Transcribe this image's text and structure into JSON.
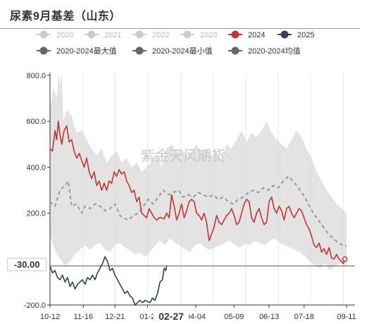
{
  "title": "尿素9月基差（山东）",
  "watermark": "紫金天风期货",
  "crosshair": {
    "y_label": "-30.00",
    "x_label": "02-27"
  },
  "chart_data": {
    "type": "line",
    "title": "尿素9月基差（山东）",
    "ylim": [
      -200,
      800
    ],
    "yticks": [
      "800.0",
      "600.0",
      "400.0",
      "200.0",
      "-200.0"
    ],
    "xticks": [
      "10-12",
      "11-16",
      "12-21",
      "01-2",
      "04-04",
      "05-09",
      "06-13",
      "07-18",
      "09-11"
    ],
    "legend": {
      "position": "top",
      "items": [
        {
          "name": "2020",
          "color": "#cccccc",
          "active": false
        },
        {
          "name": "2021",
          "color": "#cccccc",
          "active": false
        },
        {
          "name": "2022",
          "color": "#cccccc",
          "active": false
        },
        {
          "name": "2023",
          "color": "#cccccc",
          "active": false
        },
        {
          "name": "2024",
          "color": "#c23531",
          "active": true
        },
        {
          "name": "2025",
          "color": "#2f4554",
          "active": true
        },
        {
          "name": "2020-2024最大值",
          "color": "#666666",
          "active": true
        },
        {
          "name": "2020-2024最小值",
          "color": "#666666",
          "active": true
        },
        {
          "name": "2020-2024均值",
          "color": "#666666",
          "active": true
        }
      ]
    },
    "series_2024": {
      "name": "2024",
      "color": "#c23531",
      "points": [
        [
          0,
          480
        ],
        [
          3,
          470
        ],
        [
          6,
          560
        ],
        [
          8,
          520
        ],
        [
          10,
          600
        ],
        [
          12,
          540
        ],
        [
          14,
          500
        ],
        [
          17,
          560
        ],
        [
          20,
          580
        ],
        [
          23,
          510
        ],
        [
          26,
          520
        ],
        [
          29,
          470
        ],
        [
          32,
          440
        ],
        [
          35,
          460
        ],
        [
          38,
          430
        ],
        [
          41,
          400
        ],
        [
          44,
          440
        ],
        [
          47,
          380
        ],
        [
          50,
          350
        ],
        [
          53,
          380
        ],
        [
          56,
          320
        ],
        [
          59,
          340
        ],
        [
          62,
          300
        ],
        [
          65,
          330
        ],
        [
          68,
          300
        ],
        [
          71,
          340
        ],
        [
          74,
          330
        ],
        [
          77,
          380
        ],
        [
          80,
          360
        ],
        [
          83,
          390
        ],
        [
          86,
          370
        ],
        [
          89,
          380
        ],
        [
          92,
          340
        ],
        [
          95,
          320
        ],
        [
          98,
          290
        ],
        [
          101,
          300
        ],
        [
          104,
          250
        ],
        [
          107,
          270
        ],
        [
          110,
          200
        ],
        [
          113,
          190
        ],
        [
          116,
          180
        ],
        [
          119,
          220
        ],
        [
          122,
          200
        ],
        [
          125,
          180
        ],
        [
          128,
          170
        ],
        [
          131,
          180
        ],
        [
          134,
          180
        ],
        [
          137,
          175
        ],
        [
          140,
          200
        ],
        [
          143,
          180
        ],
        [
          146,
          280
        ],
        [
          149,
          230
        ],
        [
          152,
          170
        ],
        [
          155,
          200
        ],
        [
          158,
          240
        ],
        [
          161,
          180
        ],
        [
          164,
          210
        ],
        [
          167,
          250
        ],
        [
          170,
          260
        ],
        [
          173,
          250
        ],
        [
          176,
          200
        ],
        [
          179,
          190
        ],
        [
          182,
          170
        ],
        [
          185,
          200
        ],
        [
          188,
          160
        ],
        [
          191,
          80
        ],
        [
          194,
          110
        ],
        [
          197,
          140
        ],
        [
          200,
          190
        ],
        [
          203,
          160
        ],
        [
          206,
          150
        ],
        [
          209,
          170
        ],
        [
          212,
          190
        ],
        [
          215,
          200
        ],
        [
          218,
          220
        ],
        [
          221,
          190
        ],
        [
          224,
          150
        ],
        [
          227,
          160
        ],
        [
          230,
          200
        ],
        [
          233,
          240
        ],
        [
          236,
          260
        ],
        [
          239,
          250
        ],
        [
          242,
          180
        ],
        [
          245,
          160
        ],
        [
          248,
          200
        ],
        [
          251,
          220
        ],
        [
          254,
          180
        ],
        [
          257,
          150
        ],
        [
          260,
          160
        ],
        [
          263,
          250
        ],
        [
          266,
          270
        ],
        [
          269,
          220
        ],
        [
          272,
          200
        ],
        [
          275,
          230
        ],
        [
          278,
          210
        ],
        [
          281,
          170
        ],
        [
          284,
          220
        ],
        [
          287,
          230
        ],
        [
          290,
          200
        ],
        [
          293,
          180
        ],
        [
          296,
          200
        ],
        [
          299,
          220
        ],
        [
          302,
          210
        ],
        [
          305,
          180
        ],
        [
          308,
          150
        ],
        [
          311,
          130
        ],
        [
          314,
          100
        ],
        [
          317,
          60
        ],
        [
          320,
          50
        ],
        [
          323,
          70
        ],
        [
          326,
          30
        ],
        [
          329,
          45
        ],
        [
          332,
          20
        ],
        [
          335,
          50
        ],
        [
          338,
          5
        ],
        [
          341,
          0
        ],
        [
          344,
          20
        ],
        [
          347,
          0
        ],
        [
          350,
          -10
        ],
        [
          352,
          -20
        ],
        [
          354,
          0
        ]
      ]
    },
    "series_2025": {
      "name": "2025",
      "color": "#2f4554",
      "points": [
        [
          0,
          -30
        ],
        [
          3,
          -60
        ],
        [
          6,
          -50
        ],
        [
          9,
          -80
        ],
        [
          12,
          -90
        ],
        [
          15,
          -70
        ],
        [
          18,
          -100
        ],
        [
          21,
          -80
        ],
        [
          24,
          -120
        ],
        [
          27,
          -100
        ],
        [
          30,
          -130
        ],
        [
          33,
          -110
        ],
        [
          36,
          -100
        ],
        [
          39,
          -90
        ],
        [
          42,
          -110
        ],
        [
          45,
          -80
        ],
        [
          48,
          -90
        ],
        [
          51,
          -70
        ],
        [
          54,
          -90
        ],
        [
          57,
          -60
        ],
        [
          60,
          -40
        ],
        [
          63,
          -20
        ],
        [
          66,
          10
        ],
        [
          69,
          -10
        ],
        [
          72,
          -50
        ],
        [
          75,
          -40
        ],
        [
          78,
          -70
        ],
        [
          81,
          -90
        ],
        [
          84,
          -110
        ],
        [
          87,
          -130
        ],
        [
          90,
          -150
        ],
        [
          93,
          -140
        ],
        [
          96,
          -160
        ],
        [
          99,
          -170
        ],
        [
          102,
          -200
        ],
        [
          105,
          -190
        ],
        [
          108,
          -180
        ],
        [
          111,
          -190
        ],
        [
          114,
          -180
        ],
        [
          117,
          -185
        ],
        [
          120,
          -190
        ],
        [
          123,
          -170
        ],
        [
          126,
          -180
        ],
        [
          129,
          -150
        ],
        [
          132,
          -100
        ],
        [
          135,
          -90
        ],
        [
          137,
          -40
        ],
        [
          139,
          -50
        ],
        [
          140,
          -30
        ]
      ]
    },
    "series_avg": {
      "name": "2020-2024均值",
      "color": "#999999",
      "points": [
        [
          0,
          250
        ],
        [
          6,
          230
        ],
        [
          12,
          300
        ],
        [
          18,
          320
        ],
        [
          22,
          340
        ],
        [
          26,
          230
        ],
        [
          32,
          240
        ],
        [
          38,
          200
        ],
        [
          42,
          230
        ],
        [
          48,
          220
        ],
        [
          54,
          240
        ],
        [
          60,
          230
        ],
        [
          66,
          210
        ],
        [
          72,
          220
        ],
        [
          78,
          240
        ],
        [
          84,
          190
        ],
        [
          88,
          180
        ],
        [
          94,
          170
        ],
        [
          100,
          190
        ],
        [
          106,
          200
        ],
        [
          112,
          230
        ],
        [
          118,
          260
        ],
        [
          124,
          240
        ],
        [
          130,
          270
        ],
        [
          136,
          300
        ],
        [
          142,
          280
        ],
        [
          148,
          290
        ],
        [
          154,
          300
        ],
        [
          160,
          270
        ],
        [
          166,
          280
        ],
        [
          172,
          270
        ],
        [
          178,
          290
        ],
        [
          184,
          280
        ],
        [
          190,
          270
        ],
        [
          196,
          280
        ],
        [
          202,
          260
        ],
        [
          208,
          270
        ],
        [
          214,
          250
        ],
        [
          220,
          240
        ],
        [
          226,
          260
        ],
        [
          232,
          270
        ],
        [
          238,
          290
        ],
        [
          244,
          300
        ],
        [
          250,
          290
        ],
        [
          256,
          310
        ],
        [
          262,
          300
        ],
        [
          268,
          320
        ],
        [
          274,
          310
        ],
        [
          280,
          340
        ],
        [
          286,
          360
        ],
        [
          292,
          340
        ],
        [
          298,
          310
        ],
        [
          304,
          280
        ],
        [
          310,
          240
        ],
        [
          316,
          200
        ],
        [
          322,
          170
        ],
        [
          328,
          140
        ],
        [
          334,
          110
        ],
        [
          340,
          90
        ],
        [
          346,
          70
        ],
        [
          352,
          60
        ],
        [
          356,
          55
        ]
      ]
    },
    "band": {
      "name": "2020-2024 range",
      "max": [
        [
          0,
          650
        ],
        [
          4,
          750
        ],
        [
          8,
          700
        ],
        [
          10,
          800
        ],
        [
          12,
          760
        ],
        [
          14,
          810
        ],
        [
          16,
          600
        ],
        [
          20,
          650
        ],
        [
          26,
          620
        ],
        [
          32,
          550
        ],
        [
          38,
          560
        ],
        [
          44,
          520
        ],
        [
          50,
          480
        ],
        [
          56,
          450
        ],
        [
          62,
          480
        ],
        [
          68,
          420
        ],
        [
          74,
          450
        ],
        [
          80,
          470
        ],
        [
          86,
          420
        ],
        [
          92,
          440
        ],
        [
          98,
          400
        ],
        [
          104,
          420
        ],
        [
          110,
          380
        ],
        [
          116,
          400
        ],
        [
          122,
          430
        ],
        [
          128,
          460
        ],
        [
          134,
          400
        ],
        [
          140,
          480
        ],
        [
          146,
          500
        ],
        [
          152,
          460
        ],
        [
          158,
          480
        ],
        [
          164,
          450
        ],
        [
          170,
          470
        ],
        [
          176,
          500
        ],
        [
          182,
          460
        ],
        [
          188,
          480
        ],
        [
          194,
          450
        ],
        [
          200,
          470
        ],
        [
          206,
          430
        ],
        [
          212,
          500
        ],
        [
          218,
          480
        ],
        [
          224,
          520
        ],
        [
          230,
          560
        ],
        [
          236,
          510
        ],
        [
          242,
          550
        ],
        [
          248,
          530
        ],
        [
          254,
          560
        ],
        [
          260,
          600
        ],
        [
          266,
          550
        ],
        [
          272,
          520
        ],
        [
          278,
          500
        ],
        [
          284,
          480
        ],
        [
          290,
          520
        ],
        [
          296,
          560
        ],
        [
          302,
          530
        ],
        [
          308,
          480
        ],
        [
          314,
          440
        ],
        [
          320,
          380
        ],
        [
          326,
          340
        ],
        [
          332,
          300
        ],
        [
          338,
          270
        ],
        [
          344,
          240
        ],
        [
          350,
          220
        ],
        [
          356,
          200
        ]
      ],
      "min": [
        [
          0,
          100
        ],
        [
          6,
          40
        ],
        [
          12,
          0
        ],
        [
          18,
          -30
        ],
        [
          24,
          -10
        ],
        [
          30,
          20
        ],
        [
          36,
          40
        ],
        [
          42,
          60
        ],
        [
          48,
          40
        ],
        [
          54,
          60
        ],
        [
          60,
          70
        ],
        [
          66,
          40
        ],
        [
          72,
          30
        ],
        [
          78,
          60
        ],
        [
          84,
          70
        ],
        [
          90,
          50
        ],
        [
          96,
          40
        ],
        [
          102,
          20
        ],
        [
          108,
          30
        ],
        [
          114,
          10
        ],
        [
          120,
          30
        ],
        [
          126,
          60
        ],
        [
          132,
          80
        ],
        [
          138,
          60
        ],
        [
          144,
          90
        ],
        [
          150,
          70
        ],
        [
          156,
          60
        ],
        [
          162,
          40
        ],
        [
          168,
          30
        ],
        [
          174,
          60
        ],
        [
          180,
          70
        ],
        [
          186,
          50
        ],
        [
          192,
          40
        ],
        [
          198,
          50
        ],
        [
          204,
          60
        ],
        [
          210,
          70
        ],
        [
          216,
          80
        ],
        [
          222,
          60
        ],
        [
          228,
          50
        ],
        [
          234,
          70
        ],
        [
          240,
          60
        ],
        [
          246,
          80
        ],
        [
          252,
          70
        ],
        [
          258,
          60
        ],
        [
          264,
          80
        ],
        [
          270,
          90
        ],
        [
          276,
          70
        ],
        [
          282,
          60
        ],
        [
          288,
          50
        ],
        [
          294,
          40
        ],
        [
          300,
          30
        ],
        [
          306,
          10
        ],
        [
          312,
          -10
        ],
        [
          318,
          -30
        ],
        [
          324,
          -40
        ],
        [
          330,
          -20
        ],
        [
          336,
          -50
        ],
        [
          342,
          -30
        ],
        [
          348,
          -20
        ],
        [
          356,
          -30
        ]
      ]
    },
    "x_max": 356,
    "grid": "vertical-only"
  }
}
